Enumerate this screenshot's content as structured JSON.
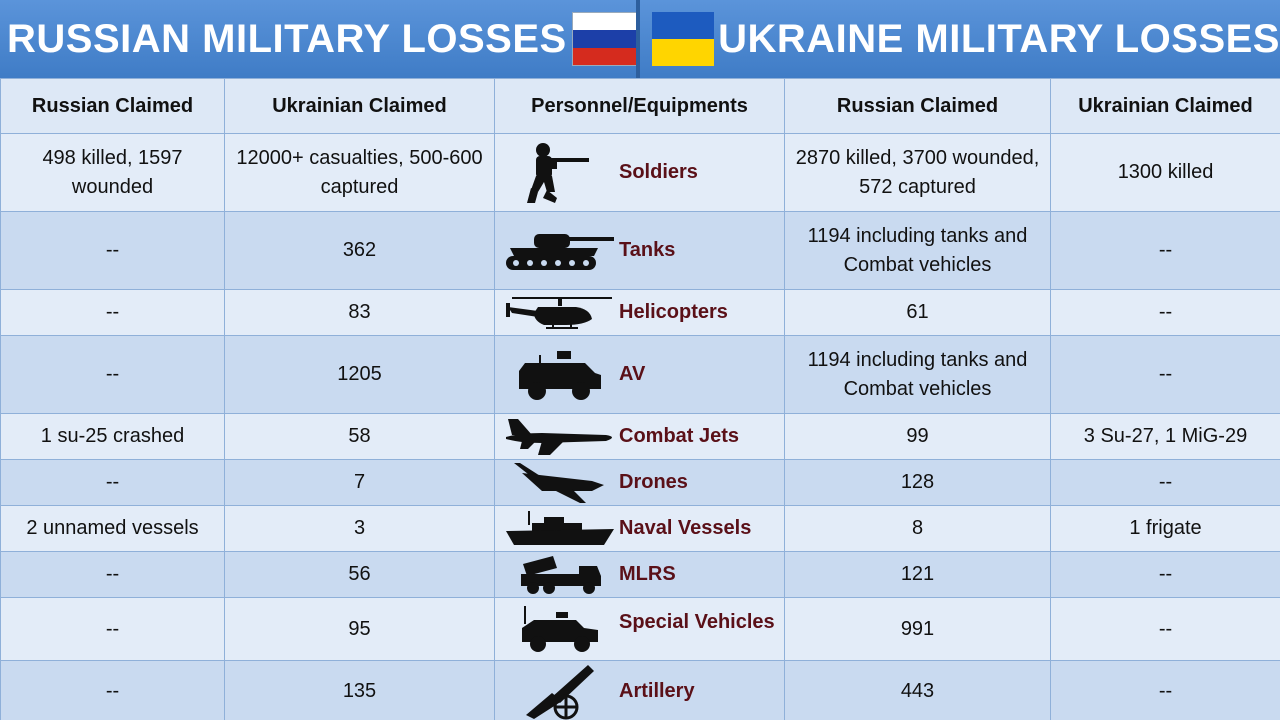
{
  "banner": {
    "left_title": "RUSSIAN MILITARY LOSSES",
    "right_title": "UKRAINE MILITARY LOSSES",
    "russia_flag_colors": [
      "#ffffff",
      "#1c3fa8",
      "#d52b1e"
    ],
    "ukraine_flag_colors": [
      "#1d5bbf",
      "#ffd500"
    ]
  },
  "table": {
    "headers": [
      "Russian Claimed",
      "Ukrainian Claimed",
      "Personnel/Equipments",
      "Russian Claimed",
      "Ukrainian Claimed"
    ],
    "rows": [
      {
        "item": "Soldiers",
        "icon": "soldier-icon",
        "russian_losses_russian_claimed": "498 killed, 1597 wounded",
        "russian_losses_ukrainian_claimed": "12000+ casualties, 500-600 captured",
        "ukraine_losses_russian_claimed": "2870 killed, 3700 wounded, 572 captured",
        "ukraine_losses_ukrainian_claimed": "1300 killed"
      },
      {
        "item": "Tanks",
        "icon": "tank-icon",
        "russian_losses_russian_claimed": "--",
        "russian_losses_ukrainian_claimed": "362",
        "ukraine_losses_russian_claimed": "1194 including tanks and Combat vehicles",
        "ukraine_losses_ukrainian_claimed": "--"
      },
      {
        "item": "Helicopters",
        "icon": "helicopter-icon",
        "russian_losses_russian_claimed": "--",
        "russian_losses_ukrainian_claimed": "83",
        "ukraine_losses_russian_claimed": "61",
        "ukraine_losses_ukrainian_claimed": "--"
      },
      {
        "item": "AV",
        "icon": "armored-vehicle-icon",
        "russian_losses_russian_claimed": "--",
        "russian_losses_ukrainian_claimed": "1205",
        "ukraine_losses_russian_claimed": "1194 including tanks and Combat vehicles",
        "ukraine_losses_ukrainian_claimed": "--"
      },
      {
        "item": "Combat Jets",
        "icon": "fighter-jet-icon",
        "russian_losses_russian_claimed": "1 su-25 crashed",
        "russian_losses_ukrainian_claimed": "58",
        "ukraine_losses_russian_claimed": "99",
        "ukraine_losses_ukrainian_claimed": "3 Su-27, 1 MiG-29"
      },
      {
        "item": "Drones",
        "icon": "drone-icon",
        "russian_losses_russian_claimed": "--",
        "russian_losses_ukrainian_claimed": "7",
        "ukraine_losses_russian_claimed": "128",
        "ukraine_losses_ukrainian_claimed": "--"
      },
      {
        "item": "Naval Vessels",
        "icon": "warship-icon",
        "russian_losses_russian_claimed": "2 unnamed vessels",
        "russian_losses_ukrainian_claimed": "3",
        "ukraine_losses_russian_claimed": "8",
        "ukraine_losses_ukrainian_claimed": "1 frigate"
      },
      {
        "item": "MLRS",
        "icon": "rocket-launcher-icon",
        "russian_losses_russian_claimed": "--",
        "russian_losses_ukrainian_claimed": "56",
        "ukraine_losses_russian_claimed": "121",
        "ukraine_losses_ukrainian_claimed": "--"
      },
      {
        "item": "Special Vehicles",
        "icon": "humvee-icon",
        "russian_losses_russian_claimed": "--",
        "russian_losses_ukrainian_claimed": "95",
        "ukraine_losses_russian_claimed": "991",
        "ukraine_losses_ukrainian_claimed": "--"
      },
      {
        "item": "Artillery",
        "icon": "cannon-icon",
        "russian_losses_russian_claimed": "--",
        "russian_losses_ukrainian_claimed": "135",
        "ukraine_losses_russian_claimed": "443",
        "ukraine_losses_ukrainian_claimed": "--"
      }
    ]
  }
}
